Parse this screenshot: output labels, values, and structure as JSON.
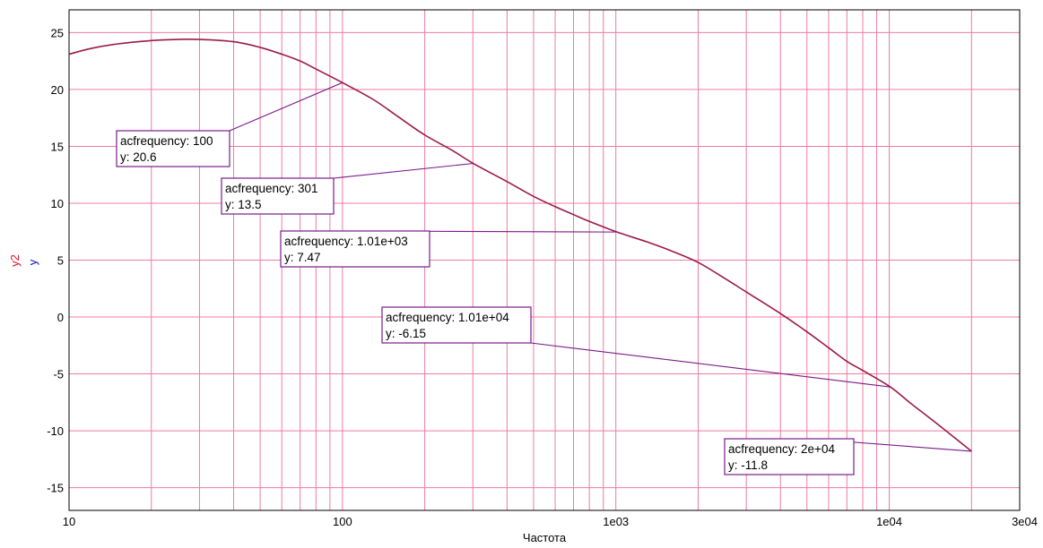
{
  "chart_data": {
    "type": "line",
    "xscale": "log",
    "xlim": [
      10,
      30000
    ],
    "ylim": [
      -17,
      27
    ],
    "xlabel": "Частота",
    "ylabels": [
      {
        "text": "y2",
        "color": "#e0102a"
      },
      {
        "text": "y",
        "color": "#1010d0"
      }
    ],
    "x_tick_labels": [
      {
        "value": 10,
        "label": "10"
      },
      {
        "value": 100,
        "label": "100"
      },
      {
        "value": 1000,
        "label": "1e03"
      },
      {
        "value": 10000,
        "label": "1e04"
      },
      {
        "value": 30000,
        "label": "3e04"
      }
    ],
    "y_ticks": [
      -15,
      -10,
      -5,
      0,
      5,
      10,
      15,
      20,
      25
    ],
    "grid": true,
    "grid_color": "#f07ba0",
    "line_color": "#9a1a4a",
    "annotation_color": "#7a1a8a",
    "series": [
      {
        "x": [
          10,
          12,
          15,
          20,
          25,
          30,
          40,
          50,
          60,
          70,
          80,
          100,
          130,
          160,
          200,
          250,
          301,
          400,
          500,
          600,
          700,
          800,
          1010,
          1300,
          1600,
          2000,
          2500,
          3000,
          4000,
          5000,
          6000,
          7000,
          8000,
          10100,
          12000,
          15000,
          20000
        ],
        "y": [
          23.1,
          23.6,
          24.0,
          24.3,
          24.4,
          24.4,
          24.2,
          23.7,
          23.1,
          22.5,
          21.8,
          20.6,
          19.1,
          17.6,
          16.0,
          14.7,
          13.5,
          11.9,
          10.6,
          9.7,
          9.0,
          8.4,
          7.47,
          6.6,
          5.8,
          4.8,
          3.4,
          2.2,
          0.3,
          -1.3,
          -2.7,
          -3.9,
          -4.7,
          -6.15,
          -7.6,
          -9.4,
          -11.8
        ]
      }
    ],
    "annotations": [
      {
        "x": 100,
        "y": 20.6,
        "line1": "acfrequency: 100",
        "line2": "y: 20.6"
      },
      {
        "x": 301,
        "y": 13.5,
        "line1": "acfrequency: 301",
        "line2": "y: 13.5"
      },
      {
        "x": 1010,
        "y": 7.47,
        "line1": "acfrequency: 1.01e+03",
        "line2": "y: 7.47"
      },
      {
        "x": 10100,
        "y": -6.15,
        "line1": "acfrequency: 1.01e+04",
        "line2": "y: -6.15"
      },
      {
        "x": 20000,
        "y": -11.8,
        "line1": "acfrequency: 2e+04",
        "line2": "y: -11.8"
      }
    ]
  }
}
